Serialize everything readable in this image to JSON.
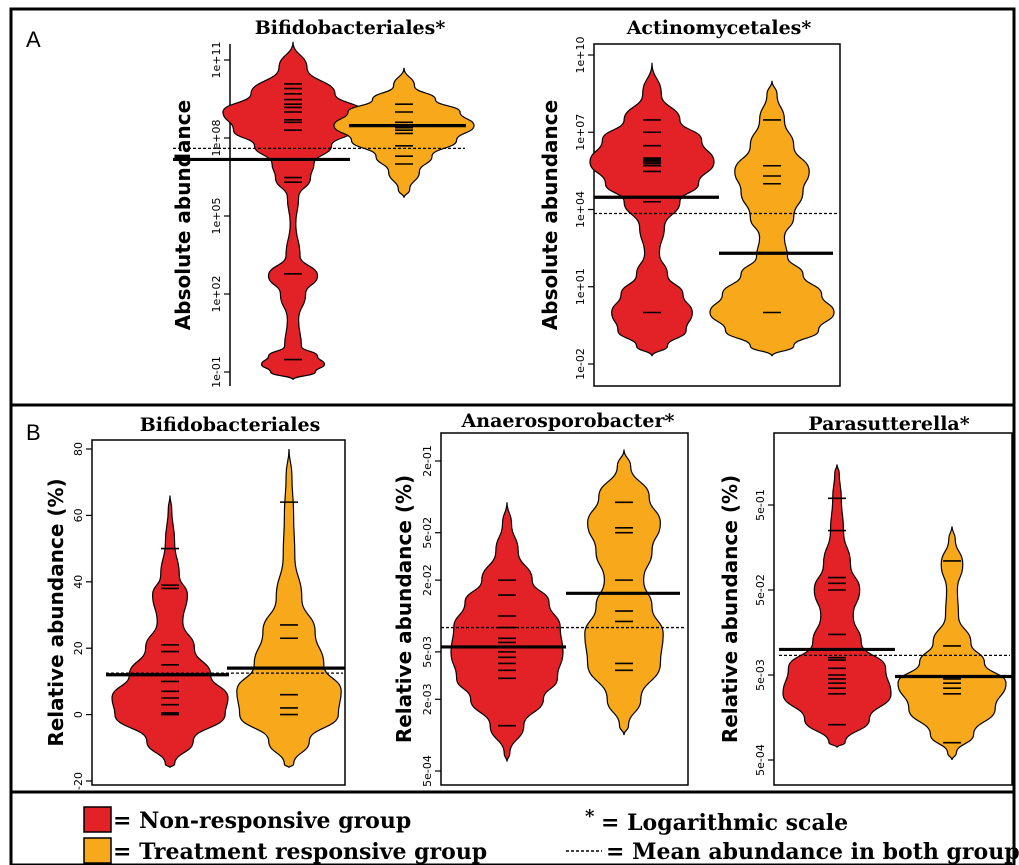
{
  "panel_labels": {
    "a": "A",
    "b": "B"
  },
  "colors": {
    "nonresponsive": "#e32228",
    "responsive": "#f7a81b",
    "ink": "#000000"
  },
  "legend": {
    "nonresponsive": "= Non-responsive group",
    "responsive": "= Treatment responsive group",
    "star_symbol": "*",
    "log_scale": "= Logarithmic scale",
    "mean": "= Mean abundance in both groups"
  },
  "chart_data": [
    {
      "type": "bean",
      "title": "Bifidobacteriales*",
      "ylabel": "Absolute abundance",
      "log": true,
      "ylim": [
        0.1,
        100000000000
      ],
      "ticks": [
        {
          "v": 0.1,
          "label": "1e-01"
        },
        {
          "v": 100,
          "label": "1e+02"
        },
        {
          "v": 100000,
          "label": "1e+05"
        },
        {
          "v": 100000000,
          "label": "1e+08"
        },
        {
          "v": 100000000000,
          "label": "1e+11"
        }
      ],
      "overall_mean": 40000000,
      "series": [
        {
          "group": "nonresponsive",
          "min": 0.05,
          "max": 500000000000,
          "mean": 15000000,
          "points": [
            0.3,
            600,
            2000000,
            3000000,
            200000000,
            400000000,
            500000000,
            1000000000,
            1500000000,
            2000000000,
            3000000000,
            5000000000,
            8000000000,
            12000000000
          ],
          "density": [
            [
              0.1,
              0.32
            ],
            [
              0.2,
              0.45
            ],
            [
              0.4,
              0.35
            ],
            [
              1,
              0.12
            ],
            [
              10,
              0.08
            ],
            [
              100,
              0.18
            ],
            [
              500,
              0.35
            ],
            [
              3000,
              0.1
            ],
            [
              50000,
              0.04
            ],
            [
              500000,
              0.08
            ],
            [
              3000000,
              0.25
            ],
            [
              10000000,
              0.3
            ],
            [
              50000000,
              0.55
            ],
            [
              200000000,
              0.85
            ],
            [
              1000000000,
              1.0
            ],
            [
              5000000000,
              0.6
            ],
            [
              50000000000,
              0.2
            ]
          ]
        },
        {
          "group": "responsive",
          "min": 500000,
          "max": 50000000000,
          "mean": 300000000,
          "points": [
            10000000,
            20000000,
            50000000,
            150000000,
            200000000,
            250000000,
            300000000,
            400000000,
            1000000000,
            2000000000
          ],
          "density": [
            [
              1000000,
              0.08
            ],
            [
              5000000,
              0.22
            ],
            [
              20000000,
              0.4
            ],
            [
              80000000,
              0.75
            ],
            [
              300000000,
              1.0
            ],
            [
              1000000000,
              0.8
            ],
            [
              3000000000,
              0.45
            ],
            [
              10000000000,
              0.15
            ]
          ]
        }
      ]
    },
    {
      "type": "bean",
      "title": "Actinomycetales*",
      "ylabel": "Absolute abundance",
      "log": true,
      "ylim": [
        0.01,
        10000000000
      ],
      "ticks": [
        {
          "v": 0.01,
          "label": "1e-02"
        },
        {
          "v": 10,
          "label": "1e+01"
        },
        {
          "v": 10000,
          "label": "1e+04"
        },
        {
          "v": 10000000,
          "label": "1e+07"
        },
        {
          "v": 10000000000,
          "label": "1e+10"
        }
      ],
      "overall_mean": 7000,
      "series": [
        {
          "group": "nonresponsive",
          "min": 0.02,
          "max": 5000000000,
          "mean": 30000,
          "points": [
            1,
            20000,
            30000,
            300000,
            500000,
            600000,
            700000,
            800000,
            900000,
            1000000,
            3000000,
            10000000,
            30000000
          ],
          "density": [
            [
              0.05,
              0.25
            ],
            [
              0.2,
              0.55
            ],
            [
              1,
              0.65
            ],
            [
              5,
              0.5
            ],
            [
              30,
              0.25
            ],
            [
              200,
              0.12
            ],
            [
              2000,
              0.2
            ],
            [
              20000,
              0.45
            ],
            [
              100000,
              0.75
            ],
            [
              700000,
              1.0
            ],
            [
              5000000,
              0.8
            ],
            [
              30000000,
              0.45
            ],
            [
              300000000,
              0.15
            ]
          ]
        },
        {
          "group": "responsive",
          "min": 0.02,
          "max": 1000000000,
          "mean": 200,
          "points": [
            1,
            100000,
            200000,
            500000,
            30000000
          ],
          "density": [
            [
              0.05,
              0.35
            ],
            [
              0.2,
              0.75
            ],
            [
              1,
              1.0
            ],
            [
              5,
              0.8
            ],
            [
              30,
              0.5
            ],
            [
              150,
              0.25
            ],
            [
              800,
              0.2
            ],
            [
              5000,
              0.35
            ],
            [
              50000,
              0.5
            ],
            [
              300000,
              0.6
            ],
            [
              3000000,
              0.35
            ],
            [
              30000000,
              0.2
            ],
            [
              300000000,
              0.08
            ]
          ]
        }
      ]
    },
    {
      "type": "bean",
      "title": "Bifidobacteriales",
      "ylabel": "Relative abundance (%)",
      "log": false,
      "ylim": [
        -20,
        80
      ],
      "ticks": [
        {
          "v": -20,
          "label": "-20"
        },
        {
          "v": 0,
          "label": "0"
        },
        {
          "v": 20,
          "label": "20"
        },
        {
          "v": 40,
          "label": "40"
        },
        {
          "v": 60,
          "label": "60"
        },
        {
          "v": 80,
          "label": "80"
        }
      ],
      "overall_mean": 12.5,
      "series": [
        {
          "group": "nonresponsive",
          "min": -16,
          "max": 66,
          "mean": 12,
          "points": [
            0,
            0.5,
            3,
            5,
            7,
            10,
            12,
            15,
            19,
            21,
            38,
            39,
            50
          ],
          "density": [
            [
              -15,
              0.08
            ],
            [
              -8,
              0.4
            ],
            [
              0,
              0.95
            ],
            [
              5,
              1.0
            ],
            [
              12,
              0.7
            ],
            [
              20,
              0.42
            ],
            [
              28,
              0.22
            ],
            [
              36,
              0.3
            ],
            [
              42,
              0.16
            ],
            [
              52,
              0.08
            ],
            [
              62,
              0.03
            ]
          ]
        },
        {
          "group": "responsive",
          "min": -16,
          "max": 80,
          "mean": 14,
          "points": [
            0,
            2,
            6,
            14,
            23,
            27,
            64
          ],
          "density": [
            [
              -15,
              0.08
            ],
            [
              -8,
              0.35
            ],
            [
              0,
              0.85
            ],
            [
              7,
              0.9
            ],
            [
              15,
              0.6
            ],
            [
              25,
              0.45
            ],
            [
              35,
              0.22
            ],
            [
              48,
              0.1
            ],
            [
              60,
              0.08
            ],
            [
              72,
              0.05
            ]
          ]
        }
      ]
    },
    {
      "type": "bean",
      "title": "Anaerosporobacter*",
      "ylabel": "Relative abundance (%)",
      "log": true,
      "ylim": [
        0.0005,
        0.2
      ],
      "ticks": [
        {
          "v": 0.0005,
          "label": "5e-04"
        },
        {
          "v": 0.002,
          "label": "2e-03"
        },
        {
          "v": 0.005,
          "label": "5e-03"
        },
        {
          "v": 0.02,
          "label": "2e-02"
        },
        {
          "v": 0.05,
          "label": "5e-02"
        },
        {
          "v": 0.2,
          "label": "2e-01"
        }
      ],
      "overall_mean": 0.008,
      "series": [
        {
          "group": "nonresponsive",
          "min": 0.0006,
          "max": 0.09,
          "mean": 0.0055,
          "points": [
            0.0012,
            0.003,
            0.0035,
            0.004,
            0.0045,
            0.005,
            0.006,
            0.0065,
            0.008,
            0.01,
            0.015,
            0.02
          ],
          "density": [
            [
              0.0007,
              0.05
            ],
            [
              0.0012,
              0.3
            ],
            [
              0.002,
              0.65
            ],
            [
              0.003,
              0.9
            ],
            [
              0.005,
              1.0
            ],
            [
              0.008,
              0.95
            ],
            [
              0.013,
              0.75
            ],
            [
              0.02,
              0.45
            ],
            [
              0.035,
              0.2
            ],
            [
              0.06,
              0.08
            ]
          ]
        },
        {
          "group": "responsive",
          "min": 0.001,
          "max": 0.25,
          "mean": 0.0155,
          "points": [
            0.0035,
            0.004,
            0.009,
            0.011,
            0.02,
            0.05,
            0.055,
            0.09
          ],
          "density": [
            [
              0.0012,
              0.08
            ],
            [
              0.002,
              0.3
            ],
            [
              0.004,
              0.65
            ],
            [
              0.007,
              0.7
            ],
            [
              0.012,
              0.5
            ],
            [
              0.02,
              0.35
            ],
            [
              0.035,
              0.5
            ],
            [
              0.06,
              0.65
            ],
            [
              0.1,
              0.45
            ],
            [
              0.18,
              0.12
            ]
          ]
        }
      ]
    },
    {
      "type": "bean",
      "title": "Parasutterella*",
      "ylabel": "Relative abundance (%)",
      "log": true,
      "ylim": [
        0.0005,
        0.5
      ],
      "ticks": [
        {
          "v": 0.0005,
          "label": "5e-04"
        },
        {
          "v": 0.005,
          "label": "5e-03"
        },
        {
          "v": 0.05,
          "label": "5e-02"
        },
        {
          "v": 0.5,
          "label": "5e-01"
        }
      ],
      "overall_mean": 0.0085,
      "series": [
        {
          "group": "nonresponsive",
          "min": 0.0007,
          "max": 1.5,
          "mean": 0.01,
          "points": [
            0.0013,
            0.003,
            0.0035,
            0.004,
            0.0045,
            0.005,
            0.006,
            0.0075,
            0.008,
            0.015,
            0.05,
            0.06,
            0.07,
            0.25,
            0.6
          ],
          "density": [
            [
              0.0008,
              0.15
            ],
            [
              0.0015,
              0.6
            ],
            [
              0.003,
              1.0
            ],
            [
              0.006,
              0.9
            ],
            [
              0.012,
              0.45
            ],
            [
              0.025,
              0.3
            ],
            [
              0.05,
              0.42
            ],
            [
              0.1,
              0.25
            ],
            [
              0.25,
              0.12
            ],
            [
              0.6,
              0.08
            ],
            [
              1.2,
              0.04
            ]
          ]
        },
        {
          "group": "responsive",
          "min": 0.0005,
          "max": 0.28,
          "mean": 0.0048,
          "points": [
            0.0008,
            0.003,
            0.0035,
            0.004,
            0.0045,
            0.011,
            0.11
          ],
          "density": [
            [
              0.0006,
              0.08
            ],
            [
              0.001,
              0.4
            ],
            [
              0.002,
              0.8
            ],
            [
              0.004,
              1.0
            ],
            [
              0.007,
              0.6
            ],
            [
              0.012,
              0.35
            ],
            [
              0.025,
              0.12
            ],
            [
              0.05,
              0.1
            ],
            [
              0.1,
              0.2
            ],
            [
              0.2,
              0.06
            ]
          ]
        }
      ]
    }
  ]
}
